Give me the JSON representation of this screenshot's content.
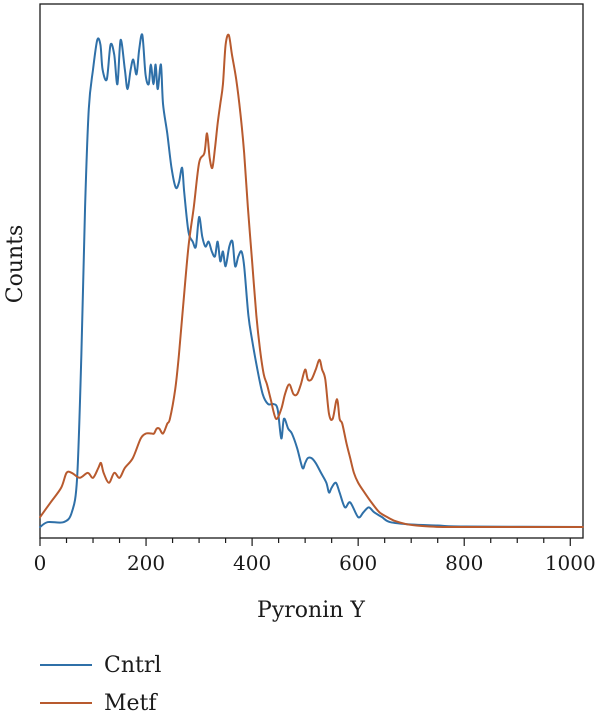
{
  "chart_data": {
    "type": "line",
    "title": "",
    "xlabel": "Pyronin Y",
    "ylabel": "Counts",
    "xlim": [
      0,
      1024
    ],
    "ylim": [
      0,
      100
    ],
    "xticks": [
      0,
      200,
      400,
      600,
      800,
      1000
    ],
    "xtick_labels": [
      "0",
      "200",
      "400",
      "600",
      "800",
      "1000"
    ],
    "yticks_shown": false,
    "grid": false,
    "legend_position": "bottom-left",
    "series": [
      {
        "name": "Cntrl",
        "color": "#2f70a8",
        "x": [
          0,
          15,
          45,
          60,
          70,
          78,
          85,
          92,
          100,
          108,
          114,
          118,
          126,
          133,
          140,
          146,
          152,
          160,
          165,
          171,
          176,
          182,
          187,
          193,
          199,
          205,
          209,
          214,
          218,
          222,
          228,
          232,
          240,
          248,
          256,
          262,
          268,
          272,
          280,
          288,
          294,
          300,
          306,
          312,
          318,
          324,
          330,
          335,
          340,
          345,
          350,
          357,
          363,
          368,
          374,
          380,
          385,
          393,
          400,
          410,
          420,
          430,
          440,
          448,
          455,
          460,
          468,
          475,
          485,
          495,
          500,
          505,
          512,
          520,
          530,
          540,
          545,
          550,
          558,
          565,
          575,
          585,
          600,
          610,
          620,
          630,
          645,
          660,
          700,
          750,
          800,
          1024
        ],
        "y": [
          0,
          1,
          1,
          3,
          10,
          35,
          65,
          85,
          93,
          99,
          98,
          93,
          91,
          98,
          96,
          90,
          99,
          93,
          89,
          93,
          95,
          92,
          97,
          100,
          92,
          90,
          94,
          90,
          94,
          89,
          94,
          86,
          80,
          73,
          69,
          70,
          73,
          68,
          60,
          58,
          57,
          63,
          59,
          57,
          58,
          56,
          55,
          58,
          54,
          56,
          53,
          57,
          58,
          53,
          55,
          56,
          53,
          43,
          38,
          32,
          27,
          25,
          25,
          24,
          18,
          22,
          20,
          19,
          16,
          12,
          13,
          14,
          14,
          13,
          11,
          9,
          7,
          8,
          9,
          7,
          4,
          5,
          2,
          3,
          4,
          3,
          2,
          1,
          0.5,
          0.3,
          0.1,
          0
        ],
        "smooth": true
      },
      {
        "name": "Metf",
        "color": "#b85a2e",
        "x": [
          0,
          20,
          40,
          50,
          60,
          75,
          90,
          100,
          110,
          115,
          120,
          130,
          140,
          150,
          160,
          175,
          190,
          200,
          210,
          215,
          220,
          225,
          232,
          240,
          245,
          255,
          262,
          270,
          280,
          290,
          300,
          310,
          315,
          320,
          325,
          330,
          335,
          340,
          345,
          350,
          356,
          362,
          370,
          378,
          385,
          392,
          400,
          408,
          415,
          422,
          428,
          435,
          445,
          455,
          462,
          470,
          478,
          485,
          492,
          500,
          505,
          512,
          520,
          527,
          532,
          538,
          545,
          552,
          560,
          565,
          570,
          578,
          585,
          592,
          600,
          612,
          625,
          640,
          655,
          670,
          690,
          710,
          735,
          760,
          800,
          1024
        ],
        "y": [
          2,
          5,
          8,
          11,
          11,
          10,
          11,
          10,
          12,
          13,
          11,
          9,
          11,
          10,
          12,
          14,
          18,
          19,
          19,
          19,
          20,
          20,
          19,
          21,
          22,
          28,
          35,
          45,
          57,
          65,
          74,
          76,
          80,
          75,
          73,
          77,
          82,
          86,
          90,
          98,
          100,
          96,
          91,
          84,
          76,
          65,
          54,
          43,
          36,
          31,
          29,
          26,
          22,
          24,
          27,
          29,
          27,
          27,
          29,
          32,
          30,
          30,
          32,
          34,
          32,
          30,
          23,
          22,
          26,
          22,
          21,
          17,
          14,
          11,
          9,
          7,
          5,
          3,
          2,
          1.2,
          0.6,
          0.3,
          0.1,
          0,
          0,
          0
        ],
        "smooth": true
      }
    ]
  }
}
